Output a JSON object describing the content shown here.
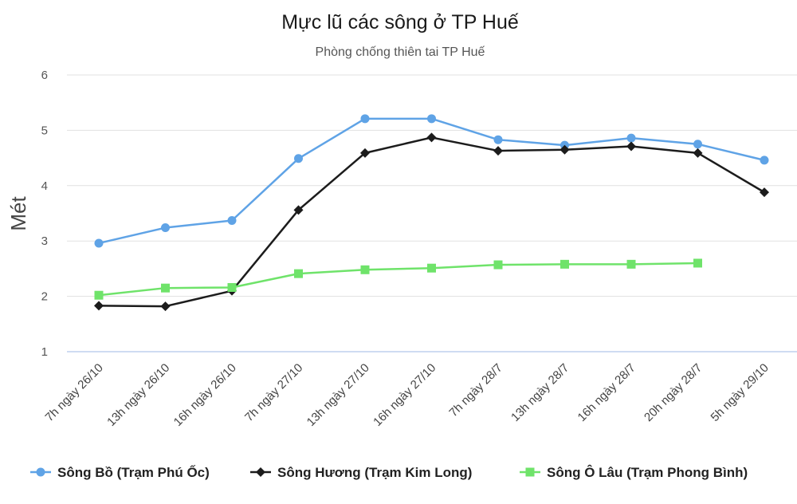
{
  "chart_data": {
    "type": "line",
    "title": "Mực lũ các sông ở TP Huế",
    "subtitle": "Phòng chống thiên tai TP Huế",
    "xlabel": "",
    "ylabel": "Mét",
    "ylim": [
      1,
      6
    ],
    "yticks": [
      "1",
      "2",
      "3",
      "4",
      "5",
      "6"
    ],
    "grid": true,
    "legend_position": "bottom",
    "categories": [
      "7h ngày 26/10",
      "13h ngày 26/10",
      "16h ngày 26/10",
      "7h ngày 27/10",
      "13h ngày 27/10",
      "16h ngày 27/10",
      "7h ngày 28/7",
      "13h ngày 28/7",
      "16h ngày 28/7",
      "20h ngày 28/7",
      "5h ngày 29/10"
    ],
    "series": [
      {
        "name": "Sông Bồ (Trạm Phú Ốc)",
        "color": "#5fa3e6",
        "marker": "circle",
        "values": [
          2.96,
          3.24,
          3.37,
          4.49,
          5.21,
          5.21,
          4.83,
          4.73,
          4.86,
          4.75,
          4.46
        ]
      },
      {
        "name": "Sông Hương (Trạm Kim Long)",
        "color": "#1c1c1c",
        "marker": "diamond",
        "values": [
          1.83,
          1.82,
          2.1,
          3.56,
          4.59,
          4.87,
          4.63,
          4.65,
          4.71,
          4.59,
          3.88
        ]
      },
      {
        "name": "Sông Ô Lâu (Trạm Phong Bình)",
        "color": "#6fe36a",
        "marker": "square",
        "values": [
          2.02,
          2.15,
          2.16,
          2.41,
          2.48,
          2.51,
          2.57,
          2.58,
          2.58,
          2.6,
          null
        ]
      }
    ]
  }
}
